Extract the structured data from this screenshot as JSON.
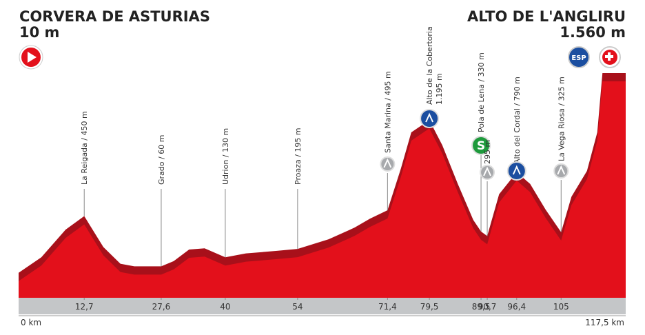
{
  "chart_data": {
    "type": "area",
    "start": {
      "name": "CORVERA DE ASTURIAS",
      "elevation": "10 m"
    },
    "finish": {
      "name": "ALTO DE L'ANGLIRU",
      "elevation": "1.560 m",
      "icon_label": "ESP"
    },
    "x_start_label": "0 km",
    "x_end_label": "117,5 km",
    "color": "#e3101b",
    "shade_color": "#a8101a",
    "x": [
      0,
      4.4,
      9.1,
      12.7,
      16.4,
      19.7,
      22.4,
      27.6,
      30,
      33,
      36,
      40,
      44,
      50,
      54,
      60,
      65,
      68,
      71.4,
      74,
      76,
      79.5,
      82,
      85,
      88,
      89.5,
      90.7,
      93,
      96.4,
      99,
      102,
      105,
      107,
      110,
      112,
      113,
      117.5
    ],
    "values": [
      10,
      130,
      345,
      450,
      210,
      80,
      60,
      60,
      100,
      190,
      200,
      130,
      160,
      180,
      195,
      270,
      360,
      430,
      495,
      820,
      1100,
      1195,
      1000,
      700,
      420,
      330,
      295,
      620,
      790,
      700,
      500,
      325,
      600,
      800,
      1100,
      1560,
      1560
    ],
    "xlim": [
      0,
      117.5
    ],
    "ylim": [
      -120,
      1560
    ],
    "xticks": [
      {
        "value": 12.7,
        "label": "12,7"
      },
      {
        "value": 27.6,
        "label": "27,6"
      },
      40,
      54,
      {
        "value": 71.4,
        "label": "71,4"
      },
      {
        "value": 79.5,
        "label": "79,5"
      },
      {
        "value": 89.5,
        "label": "89,5"
      },
      {
        "value": 90.7,
        "label": "90,7"
      },
      {
        "value": 96.4,
        "label": "96,4"
      },
      105
    ],
    "waypoints": [
      {
        "label": "La Reigada / 450 m"
      },
      {
        "label": "Grado / 60 m"
      },
      {
        "label": "Udrion / 130 m"
      },
      {
        "label": "Proaza / 195 m"
      },
      {
        "label": "Santa Marina / 495 m",
        "icon": "gray"
      },
      {
        "label": "Alto de la Cobertoria",
        "sublabel": "1.195 m",
        "icon": "blue"
      },
      {
        "label": "Pola de Lena / 330 m",
        "icon": "green",
        "icon_label": "S"
      },
      {
        "label": "295 m",
        "icon": "gray"
      },
      {
        "label": "Alto del Cordal / 790 m",
        "icon": "blue"
      },
      {
        "label": "La Vega Riosa / 325 m",
        "icon": "gray"
      }
    ]
  }
}
